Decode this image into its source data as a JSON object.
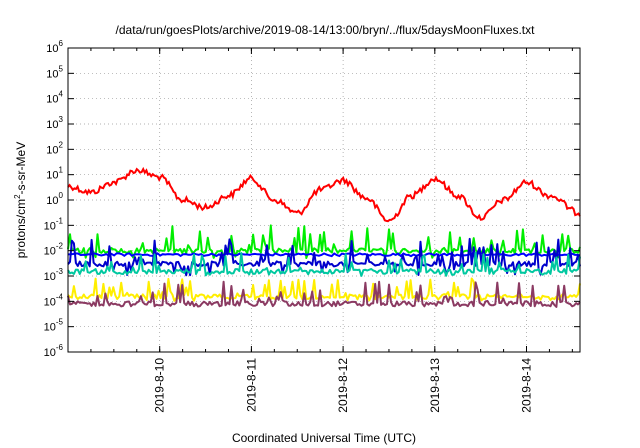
{
  "chart_data": {
    "type": "line",
    "title": "/data/run/goesPlots/archive/2019-08-14/13:00/bryn/../flux/5daysMoonFluxes.txt",
    "xlabel": "Coordinated Universal Time (UTC)",
    "ylabel_parts": [
      "protons/cm",
      "2",
      "-s-sr-MeV"
    ],
    "y_scale": "log",
    "ylim": [
      1e-06,
      1000000.0
    ],
    "y_ticks": [
      {
        "base": "10",
        "exp": "-6",
        "value": 1e-06
      },
      {
        "base": "10",
        "exp": "-5",
        "value": 1e-05
      },
      {
        "base": "10",
        "exp": "-4",
        "value": 0.0001
      },
      {
        "base": "10",
        "exp": "-3",
        "value": 0.001
      },
      {
        "base": "10",
        "exp": "-2",
        "value": 0.01
      },
      {
        "base": "10",
        "exp": "-1",
        "value": 0.1
      },
      {
        "base": "10",
        "exp": "0",
        "value": 1
      },
      {
        "base": "10",
        "exp": "1",
        "value": 10
      },
      {
        "base": "10",
        "exp": "2",
        "value": 100
      },
      {
        "base": "10",
        "exp": "3",
        "value": 1000
      },
      {
        "base": "10",
        "exp": "4",
        "value": 10000
      },
      {
        "base": "10",
        "exp": "5",
        "value": 100000
      },
      {
        "base": "10",
        "exp": "6",
        "value": 1000000
      }
    ],
    "xlim": [
      "2019-08-09 00:00",
      "2019-08-14 14:00"
    ],
    "x_ticks": [
      {
        "label": "2019-8-10",
        "value": "2019-08-10 00:00"
      },
      {
        "label": "2019-8-11",
        "value": "2019-08-11 00:00"
      },
      {
        "label": "2019-8-12",
        "value": "2019-08-12 00:00"
      },
      {
        "label": "2019-8-13",
        "value": "2019-08-13 00:00"
      },
      {
        "label": "2019-8-14",
        "value": "2019-08-14 00:00"
      }
    ],
    "grid": true,
    "series": [
      {
        "color": "#ff0000",
        "style": "smooth",
        "x": [
          "2019-08-09 00:00",
          "2019-08-09 06:00",
          "2019-08-09 12:00",
          "2019-08-09 18:00",
          "2019-08-10 00:00",
          "2019-08-10 06:00",
          "2019-08-10 12:00",
          "2019-08-10 18:00",
          "2019-08-11 00:00",
          "2019-08-11 06:00",
          "2019-08-11 12:00",
          "2019-08-11 18:00",
          "2019-08-12 00:00",
          "2019-08-12 06:00",
          "2019-08-12 12:00",
          "2019-08-12 18:00",
          "2019-08-13 00:00",
          "2019-08-13 06:00",
          "2019-08-13 12:00",
          "2019-08-13 18:00",
          "2019-08-14 00:00",
          "2019-08-14 06:00",
          "2019-08-14 14:00"
        ],
        "values": [
          3.5,
          2,
          5,
          15,
          8,
          1,
          0.5,
          1.5,
          7,
          1,
          0.3,
          2.5,
          6,
          1.2,
          0.15,
          1.5,
          7,
          1.5,
          0.2,
          1,
          5,
          1.5,
          0.3
        ]
      },
      {
        "color": "#00ee00",
        "style": "noisy",
        "x": [
          "2019-08-09 00:00",
          "2019-08-14 14:00"
        ],
        "values": [
          0.01,
          0.01
        ],
        "range": [
          0.005,
          0.1
        ]
      },
      {
        "color": "#0000ff",
        "style": "flat",
        "x": [
          "2019-08-09 00:00",
          "2019-08-14 14:00"
        ],
        "values": [
          0.007,
          0.007
        ]
      },
      {
        "color": "#0000cc",
        "style": "noisy",
        "x": [
          "2019-08-09 00:00",
          "2019-08-14 14:00"
        ],
        "values": [
          0.003,
          0.003
        ],
        "range": [
          0.001,
          0.03
        ]
      },
      {
        "color": "#00c8a0",
        "style": "noisy",
        "x": [
          "2019-08-09 00:00",
          "2019-08-14 14:00"
        ],
        "values": [
          0.0015,
          0.0015
        ],
        "range": [
          0.001,
          0.01
        ]
      },
      {
        "color": "#ffee00",
        "style": "noisy",
        "x": [
          "2019-08-09 00:00",
          "2019-08-14 14:00"
        ],
        "values": [
          0.00015,
          0.00015
        ],
        "range": [
          0.0001,
          0.0008
        ]
      },
      {
        "color": "#8b3a62",
        "style": "noisy",
        "x": [
          "2019-08-09 00:00",
          "2019-08-14 14:00"
        ],
        "values": [
          8e-05,
          8e-05
        ],
        "range": [
          6e-05,
          0.0006
        ]
      }
    ]
  }
}
